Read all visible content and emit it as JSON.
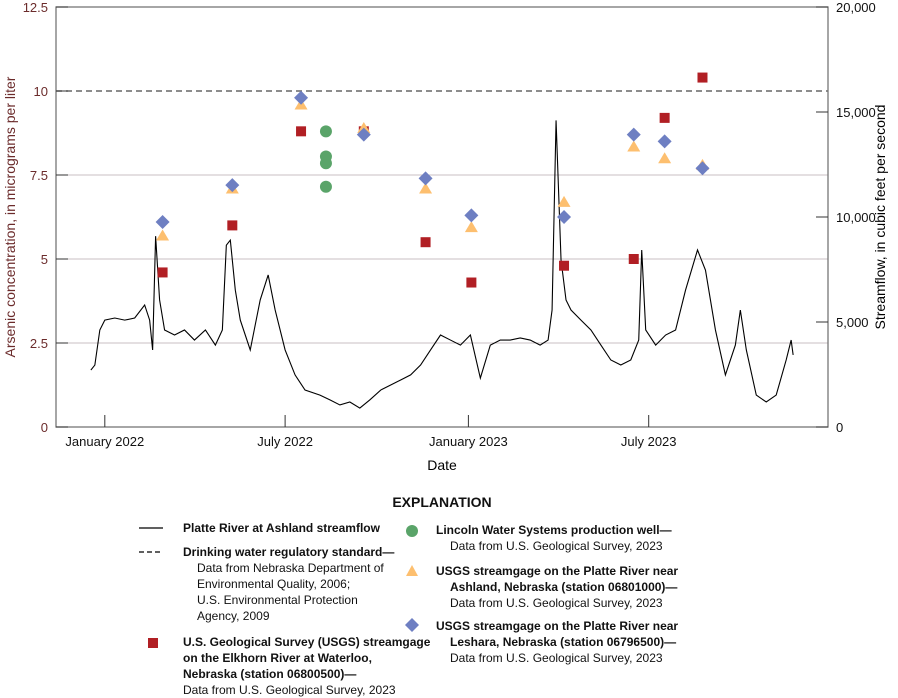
{
  "chart_data": {
    "type": "scatter",
    "xlabel": "Date",
    "ylabel_left": "Arsenic concentration, in micrograms per liter",
    "ylabel_right": "Streamflow, in cubic feet per second",
    "ylim_left": [
      0,
      12.5
    ],
    "ylim_right": [
      0,
      20000
    ],
    "xlim": [
      "2021-11-13",
      "2023-12-28"
    ],
    "yticks_left": [
      "0",
      "2.5",
      "5",
      "7.5",
      "10",
      "12.5"
    ],
    "yticks_left_values": [
      0,
      2.5,
      5,
      7.5,
      10,
      12.5
    ],
    "yticks_right": [
      "0",
      "5,000",
      "10,000",
      "15,000",
      "20,000"
    ],
    "yticks_right_values": [
      0,
      5000,
      10000,
      15000,
      20000
    ],
    "xticks": [
      {
        "date": "2022-01-01",
        "label": "January 2022"
      },
      {
        "date": "2022-07-01",
        "label": "July 2022"
      },
      {
        "date": "2023-01-01",
        "label": "January 2023"
      },
      {
        "date": "2023-07-01",
        "label": "July 2023"
      }
    ],
    "gridlines_left": [
      2.5,
      5,
      7.5
    ],
    "standard_line": 10,
    "colors": {
      "elkhorn": "#b11f24",
      "lincoln": "#5aa469",
      "ashland": "#fdbf6f",
      "leshara": "#6e7fc2",
      "axis_label_left": "#6b2b2b",
      "grid": "#c9bfc3"
    },
    "streamflow": {
      "name": "Platte River at Ashland streamflow",
      "axis": "right",
      "dates": [
        "2021-12-18",
        "2021-12-22",
        "2021-12-27",
        "2022-01-01",
        "2022-01-11",
        "2022-01-21",
        "2022-01-31",
        "2022-02-10",
        "2022-02-15",
        "2022-02-18",
        "2022-02-21",
        "2022-02-25",
        "2022-03-02",
        "2022-03-12",
        "2022-03-22",
        "2022-04-01",
        "2022-04-12",
        "2022-04-22",
        "2022-04-29",
        "2022-05-03",
        "2022-05-07",
        "2022-05-12",
        "2022-05-17",
        "2022-05-27",
        "2022-06-06",
        "2022-06-14",
        "2022-06-21",
        "2022-07-01",
        "2022-07-11",
        "2022-07-21",
        "2022-08-05",
        "2022-08-15",
        "2022-08-25",
        "2022-09-04",
        "2022-09-14",
        "2022-09-24",
        "2022-10-05",
        "2022-10-15",
        "2022-10-25",
        "2022-11-04",
        "2022-11-14",
        "2022-11-24",
        "2022-12-04",
        "2022-12-14",
        "2022-12-24",
        "2023-01-03",
        "2023-01-13",
        "2023-01-23",
        "2023-02-02",
        "2023-02-12",
        "2023-02-22",
        "2023-03-04",
        "2023-03-14",
        "2023-03-22",
        "2023-03-26",
        "2023-03-30",
        "2023-04-04",
        "2023-04-09",
        "2023-04-14",
        "2023-04-24",
        "2023-05-04",
        "2023-05-14",
        "2023-05-24",
        "2023-06-03",
        "2023-06-13",
        "2023-06-21",
        "2023-06-24",
        "2023-06-28",
        "2023-07-08",
        "2023-07-18",
        "2023-07-28",
        "2023-08-07",
        "2023-08-19",
        "2023-08-27",
        "2023-09-06",
        "2023-09-16",
        "2023-09-26",
        "2023-10-01",
        "2023-10-07",
        "2023-10-17",
        "2023-10-27",
        "2023-11-06",
        "2023-11-16",
        "2023-11-21",
        "2023-11-23"
      ],
      "values": [
        2710,
        2950,
        4620,
        5090,
        5190,
        5090,
        5190,
        5810,
        5090,
        3670,
        9090,
        6050,
        4620,
        4380,
        4620,
        4140,
        4620,
        3900,
        4620,
        8660,
        8900,
        6520,
        5090,
        3670,
        6050,
        7240,
        5570,
        3670,
        2480,
        1760,
        1520,
        1290,
        1050,
        1190,
        900,
        1290,
        1760,
        2000,
        2240,
        2480,
        2950,
        3670,
        4380,
        4140,
        3900,
        4380,
        2330,
        3900,
        4140,
        4140,
        4240,
        4140,
        3900,
        4140,
        5570,
        14600,
        7950,
        6050,
        5570,
        5090,
        4620,
        3900,
        3190,
        2950,
        3190,
        4140,
        8430,
        4620,
        3900,
        4380,
        4620,
        6520,
        8430,
        7470,
        4620,
        2480,
        3900,
        5570,
        3670,
        1520,
        1190,
        1520,
        3190,
        4140,
        3430
      ]
    },
    "series": [
      {
        "name": "U.S. Geological Survey (USGS) streamgage on the Elkhorn River at Waterloo, Nebraska (station 06800500)",
        "marker": "square",
        "dates": [
          "2022-02-28",
          "2022-05-09",
          "2022-07-17",
          "2022-09-18",
          "2022-11-19",
          "2023-01-04",
          "2023-04-07",
          "2023-06-16",
          "2023-07-17",
          "2023-08-24"
        ],
        "values": [
          4.6,
          6.0,
          8.8,
          8.8,
          5.5,
          4.3,
          4.8,
          5.0,
          9.2,
          10.4
        ]
      },
      {
        "name": "Lincoln Water Systems production well",
        "marker": "circle",
        "dates": [
          "2022-08-11",
          "2022-08-11",
          "2022-08-11",
          "2022-08-11"
        ],
        "values": [
          8.8,
          8.05,
          7.85,
          7.15
        ]
      },
      {
        "name": "USGS streamgage on the Platte River near Ashland, Nebraska (station 06801000)",
        "marker": "triangle",
        "dates": [
          "2022-02-28",
          "2022-05-09",
          "2022-07-17",
          "2022-09-18",
          "2022-11-19",
          "2023-01-04",
          "2023-04-07",
          "2023-06-16",
          "2023-07-17",
          "2023-08-24"
        ],
        "values": [
          5.7,
          7.1,
          9.6,
          8.9,
          7.1,
          5.95,
          6.7,
          8.35,
          8.0,
          7.8
        ]
      },
      {
        "name": "USGS streamgage on the Platte River near Leshara, Nebraska (station 06796500)",
        "marker": "diamond",
        "dates": [
          "2022-02-28",
          "2022-05-09",
          "2022-07-17",
          "2022-09-18",
          "2022-11-19",
          "2023-01-04",
          "2023-04-07",
          "2023-06-16",
          "2023-07-17",
          "2023-08-24"
        ],
        "values": [
          6.1,
          7.2,
          9.8,
          8.7,
          7.4,
          6.3,
          6.25,
          8.7,
          8.5,
          7.7
        ]
      }
    ]
  },
  "legend": {
    "title": "EXPLANATION",
    "streamflow": "Platte River at Ashland streamflow",
    "standard": "Drinking water regulatory standard—",
    "standard_src1": "Data from Nebraska Department of",
    "standard_src2": "Environmental Quality, 2006;",
    "standard_src3": "U.S. Environmental Protection",
    "standard_src4": "Agency, 2009",
    "elkhorn1": "U.S. Geological Survey (USGS) streamgage",
    "elkhorn2": "on the Elkhorn River at Waterloo,",
    "elkhorn3": "Nebraska (station 06800500)—",
    "elkhorn_src": "Data from U.S. Geological Survey, 2023",
    "lincoln1": "Lincoln Water Systems production well—",
    "lincoln_src": "Data from U.S. Geological Survey, 2023",
    "ashland1": "USGS streamgage on the Platte River near",
    "ashland2": "Ashland, Nebraska (station 06801000)—",
    "ashland_src": "Data from U.S. Geological Survey, 2023",
    "leshara1": "USGS streamgage  on the Platte River near",
    "leshara2": "Leshara, Nebraska (station 06796500)—",
    "leshara_src": "Data from U.S. Geological Survey, 2023"
  }
}
